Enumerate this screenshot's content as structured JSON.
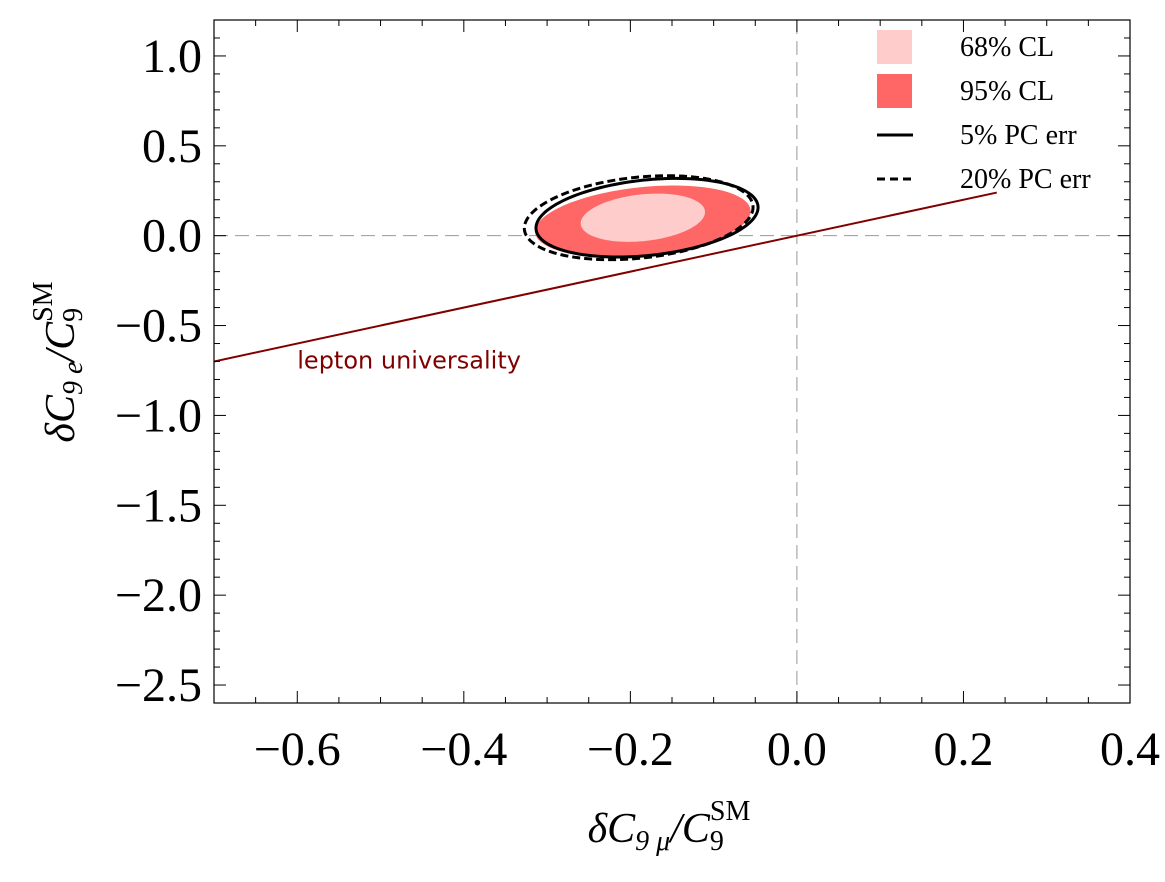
{
  "chart_data": {
    "type": "scatter",
    "title": "",
    "xlabel": {
      "main": "δC",
      "sub": "9 μ",
      "slash": "/C",
      "sub2": "9",
      "sup": "SM"
    },
    "ylabel": {
      "main": "δC",
      "sub": "9 e",
      "slash": "/C",
      "sub2": "9",
      "sup": "SM"
    },
    "xlim": [
      -0.7,
      0.4
    ],
    "ylim": [
      -2.6,
      1.2
    ],
    "xticks": [
      {
        "value": -0.6,
        "label": "−0.6"
      },
      {
        "value": -0.4,
        "label": "−0.4"
      },
      {
        "value": -0.2,
        "label": "−0.2"
      },
      {
        "value": 0.0,
        "label": "0.0"
      },
      {
        "value": 0.2,
        "label": "0.2"
      },
      {
        "value": 0.4,
        "label": "0.4"
      }
    ],
    "yticks": [
      {
        "value": 1.0,
        "label": "1.0"
      },
      {
        "value": 0.5,
        "label": "0.5"
      },
      {
        "value": 0.0,
        "label": "0.0"
      },
      {
        "value": -0.5,
        "label": "−0.5"
      },
      {
        "value": -1.0,
        "label": "−1.0"
      },
      {
        "value": -1.5,
        "label": "−1.5"
      },
      {
        "value": -2.0,
        "label": "−2.0"
      },
      {
        "value": -2.5,
        "label": "−2.5"
      }
    ],
    "reference_lines": [
      {
        "name": "x-zero-line",
        "axis": "x",
        "value": 0.0,
        "style": "dashed",
        "color": "#999999"
      },
      {
        "name": "y-zero-line",
        "axis": "y",
        "value": 0.0,
        "style": "dashed",
        "color": "#999999"
      }
    ],
    "lepton_universality": {
      "label": "lepton universality",
      "color": "#800000",
      "points": [
        [
          -0.7,
          -0.7
        ],
        [
          0.24,
          0.24
        ]
      ],
      "label_at": [
        -0.6,
        -0.74
      ]
    },
    "regions": [
      {
        "name": "95% CL",
        "color": "#ff6666",
        "center": [
          -0.185,
          0.08
        ],
        "semi_major": 0.13,
        "semi_minor": 0.19,
        "angle_deg": 6
      },
      {
        "name": "68% CL",
        "color": "#ffcccc",
        "center": [
          -0.185,
          0.1
        ],
        "semi_major": 0.075,
        "semi_minor": 0.13,
        "angle_deg": 6
      }
    ],
    "contours": [
      {
        "name": "5% PC err",
        "style": "solid",
        "color": "#000000",
        "center": [
          -0.18,
          0.1
        ],
        "semi_major": 0.134,
        "semi_minor": 0.21,
        "angle_deg": 6
      },
      {
        "name": "20% PC err",
        "style": "dashed",
        "color": "#000000",
        "center": [
          -0.19,
          0.1
        ],
        "semi_major": 0.138,
        "semi_minor": 0.225,
        "angle_deg": 6
      }
    ],
    "legend": {
      "position": "top-right",
      "entries": [
        {
          "label": "68% CL",
          "kind": "swatch",
          "color": "#ffcccc"
        },
        {
          "label": "95% CL",
          "kind": "swatch",
          "color": "#ff6666"
        },
        {
          "label": "5% PC err",
          "kind": "solid-line",
          "color": "#000000"
        },
        {
          "label": "20% PC err",
          "kind": "dashed-line",
          "color": "#000000"
        }
      ]
    }
  }
}
